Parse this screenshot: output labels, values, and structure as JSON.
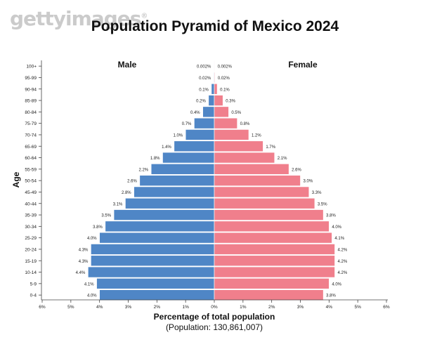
{
  "watermark": "gettyimages",
  "watermark_mark": "®",
  "chart_data": {
    "type": "bar",
    "orientation": "horizontal-pyramid",
    "title": "Population Pyramid of Mexico 2024",
    "xlabel": "Percentage of total population",
    "subtitle": "(Population: 130,861,007)",
    "ylabel": "Age",
    "xlim": [
      -6,
      6
    ],
    "x_ticks": [
      -6,
      -5,
      -4,
      -3,
      -2,
      -1,
      0,
      1,
      2,
      3,
      4,
      5,
      6
    ],
    "x_tick_labels": [
      "6%",
      "5%",
      "4%",
      "3%",
      "2%",
      "1%",
      "0%",
      "1%",
      "2%",
      "3%",
      "4%",
      "5%",
      "6%"
    ],
    "categories": [
      "100+",
      "95-99",
      "90-94",
      "85-89",
      "80-84",
      "75-79",
      "70-74",
      "65-69",
      "60-64",
      "55-59",
      "50-54",
      "45-49",
      "40-44",
      "35-39",
      "30-34",
      "25-29",
      "20-24",
      "15-19",
      "10-14",
      "5-9",
      "0-4"
    ],
    "series": [
      {
        "name": "Male",
        "color": "#4f86c6",
        "values": [
          0.002,
          0.02,
          0.1,
          0.2,
          0.4,
          0.7,
          1.0,
          1.4,
          1.8,
          2.2,
          2.6,
          2.8,
          3.1,
          3.5,
          3.8,
          4.0,
          4.3,
          4.3,
          4.4,
          4.1,
          4.0
        ],
        "labels": [
          "0.002%",
          "0.02%",
          "0.1%",
          "0.2%",
          "0.4%",
          "0.7%",
          "1.0%",
          "1.4%",
          "1.8%",
          "2.2%",
          "2.6%",
          "2.8%",
          "3.1%",
          "3.5%",
          "3.8%",
          "4.0%",
          "4.3%",
          "4.3%",
          "4.4%",
          "4.1%",
          "4.0%"
        ]
      },
      {
        "name": "Female",
        "color": "#f07f8c",
        "values": [
          0.002,
          0.02,
          0.1,
          0.3,
          0.5,
          0.8,
          1.2,
          1.7,
          2.1,
          2.6,
          3.0,
          3.3,
          3.5,
          3.8,
          4.0,
          4.1,
          4.2,
          4.2,
          4.2,
          4.0,
          3.8
        ],
        "labels": [
          "0.002%",
          "0.02%",
          "0.1%",
          "0.3%",
          "0.5%",
          "0.8%",
          "1.2%",
          "1.7%",
          "2.1%",
          "2.6%",
          "3.0%",
          "3.3%",
          "3.5%",
          "3.8%",
          "4.0%",
          "4.1%",
          "4.2%",
          "4.2%",
          "4.2%",
          "4.0%",
          "3.8%"
        ]
      }
    ]
  }
}
